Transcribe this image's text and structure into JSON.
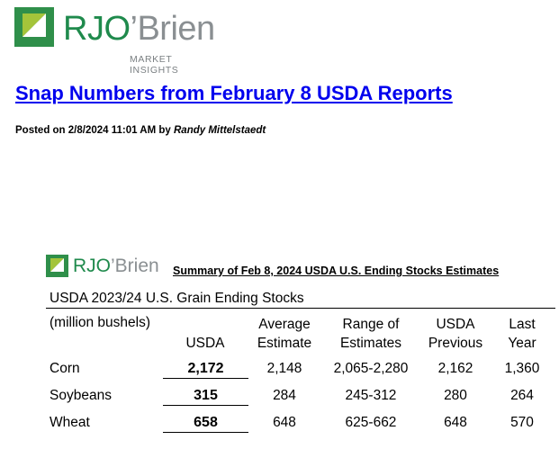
{
  "brand": {
    "name_part1": "RJO",
    "name_part2": "’Brien",
    "tagline": "MARKET INSIGHTS",
    "colors": {
      "green": "#2f8f4a",
      "lime": "#a4c43a",
      "gray": "#8a8f92"
    }
  },
  "article": {
    "title": "Snap Numbers from February 8 USDA Reports",
    "posted_prefix": "Posted on 2/8/2024 11:01 AM by",
    "author": "Randy Mittelstaedt"
  },
  "table": {
    "summary_title": "Summary of Feb 8, 2024 USDA U.S. Ending Stocks Estimates",
    "section_title": "USDA 2023/24 U.S. Grain Ending Stocks",
    "unit_label": "(million bushels)",
    "headers": {
      "usda": "USDA",
      "avg_line1": "Average",
      "avg_line2": "Estimate",
      "range_line1": "Range of",
      "range_line2": "Estimates",
      "prev_line1": "USDA",
      "prev_line2": "Previous",
      "last_line1": "Last",
      "last_line2": "Year"
    },
    "rows": [
      {
        "crop": "Corn",
        "usda": "2,172",
        "avg": "2,148",
        "range": "2,065-2,280",
        "previous": "2,162",
        "last_year": "1,360"
      },
      {
        "crop": "Soybeans",
        "usda": "315",
        "avg": "284",
        "range": "245-312",
        "previous": "280",
        "last_year": "264"
      },
      {
        "crop": "Wheat",
        "usda": "658",
        "avg": "648",
        "range": "625-662",
        "previous": "648",
        "last_year": "570"
      }
    ]
  }
}
